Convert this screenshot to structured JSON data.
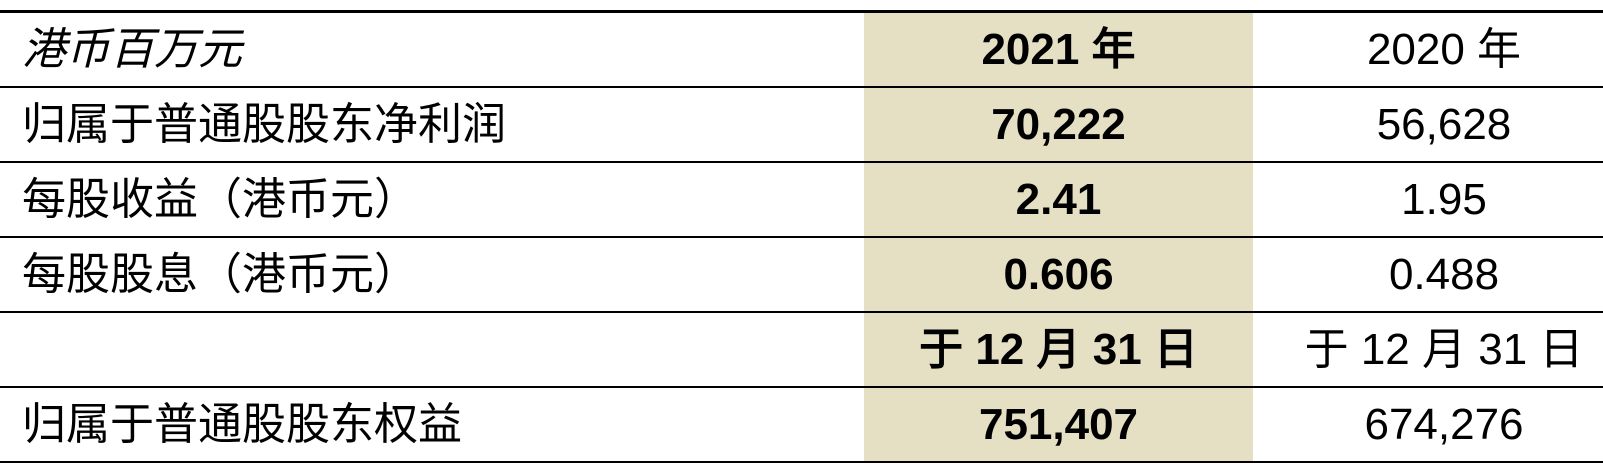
{
  "table": {
    "unit_label": "港币百万元",
    "header": {
      "current": "2021 年",
      "prior": "2020 年"
    },
    "rows": [
      {
        "label": "归属于普通股股东净利润",
        "current": "70,222",
        "prior": "56,628"
      },
      {
        "label": "每股收益（港币元）",
        "current": "2.41",
        "prior": "1.95"
      },
      {
        "label": "每股股息（港币元）",
        "current": "0.606",
        "prior": "0.488"
      },
      {
        "label": "",
        "current": "于 12 月 31 日",
        "prior": "于 12 月 31 日"
      },
      {
        "label": "归属于普通股股东权益",
        "current": "751,407",
        "prior": "674,276"
      }
    ],
    "colors": {
      "highlight_column_bg": "#e5dfc4",
      "rule": "#000000",
      "text": "#000000"
    }
  }
}
